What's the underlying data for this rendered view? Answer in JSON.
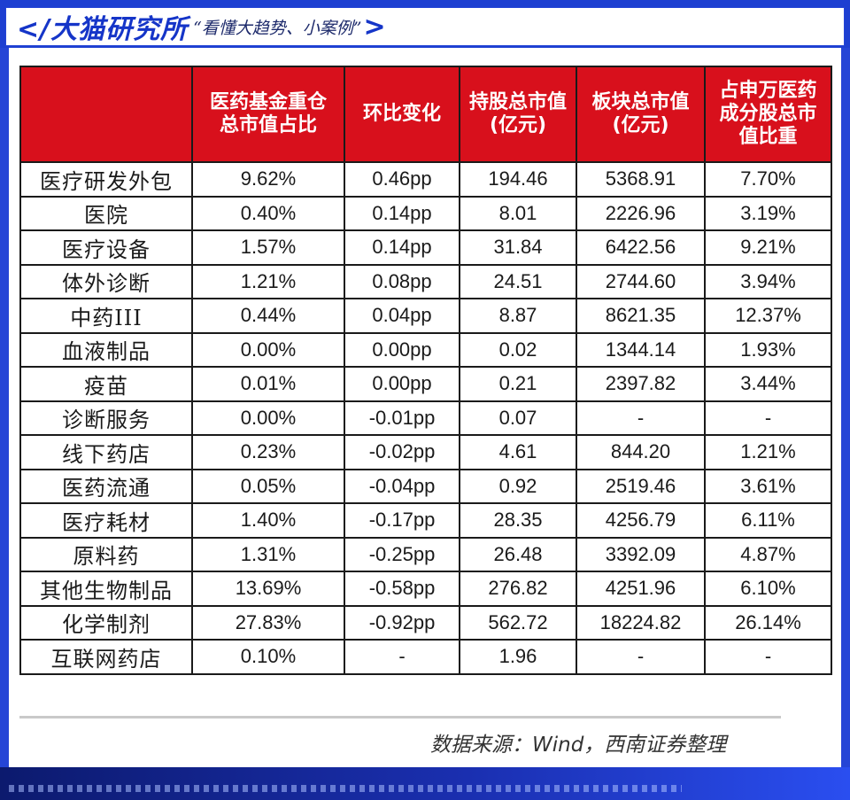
{
  "header": {
    "title": "</大猫研究所",
    "subtitle": "“看懂大趋势、小案例”",
    "close": ">"
  },
  "table": {
    "columns": [
      "",
      "医药基金重仓总市值占比",
      "环比变化",
      "持股总市值(亿元)",
      "板块总市值(亿元)",
      "占申万医药成分股总市值比重"
    ],
    "rows": [
      {
        "name": "医疗研发外包",
        "ratio": "9.62%",
        "change": "0.46pp",
        "holding": "194.46",
        "sector": "5368.91",
        "weight": "7.70%"
      },
      {
        "name": "医院",
        "ratio": "0.40%",
        "change": "0.14pp",
        "holding": "8.01",
        "sector": "2226.96",
        "weight": "3.19%"
      },
      {
        "name": "医疗设备",
        "ratio": "1.57%",
        "change": "0.14pp",
        "holding": "31.84",
        "sector": "6422.56",
        "weight": "9.21%"
      },
      {
        "name": "体外诊断",
        "ratio": "1.21%",
        "change": "0.08pp",
        "holding": "24.51",
        "sector": "2744.60",
        "weight": "3.94%"
      },
      {
        "name": "中药III",
        "ratio": "0.44%",
        "change": "0.04pp",
        "holding": "8.87",
        "sector": "8621.35",
        "weight": "12.37%"
      },
      {
        "name": "血液制品",
        "ratio": "0.00%",
        "change": "0.00pp",
        "holding": "0.02",
        "sector": "1344.14",
        "weight": "1.93%"
      },
      {
        "name": "疫苗",
        "ratio": "0.01%",
        "change": "0.00pp",
        "holding": "0.21",
        "sector": "2397.82",
        "weight": "3.44%"
      },
      {
        "name": "诊断服务",
        "ratio": "0.00%",
        "change": "-0.01pp",
        "holding": "0.07",
        "sector": "-",
        "weight": "-"
      },
      {
        "name": "线下药店",
        "ratio": "0.23%",
        "change": "-0.02pp",
        "holding": "4.61",
        "sector": "844.20",
        "weight": "1.21%"
      },
      {
        "name": "医药流通",
        "ratio": "0.05%",
        "change": "-0.04pp",
        "holding": "0.92",
        "sector": "2519.46",
        "weight": "3.61%"
      },
      {
        "name": "医疗耗材",
        "ratio": "1.40%",
        "change": "-0.17pp",
        "holding": "28.35",
        "sector": "4256.79",
        "weight": "6.11%"
      },
      {
        "name": "原料药",
        "ratio": "1.31%",
        "change": "-0.25pp",
        "holding": "26.48",
        "sector": "3392.09",
        "weight": "4.87%"
      },
      {
        "name": "其他生物制品",
        "ratio": "13.69%",
        "change": "-0.58pp",
        "holding": "276.82",
        "sector": "4251.96",
        "weight": "6.10%"
      },
      {
        "name": "化学制剂",
        "ratio": "27.83%",
        "change": "-0.92pp",
        "holding": "562.72",
        "sector": "18224.82",
        "weight": "26.14%"
      },
      {
        "name": "互联网药店",
        "ratio": "0.10%",
        "change": "-",
        "holding": "1.96",
        "sector": "-",
        "weight": "-"
      }
    ]
  },
  "source": "数据来源：Wind，西南证券整理",
  "colors": {
    "header_red": "#d8101c",
    "frame_blue": "#1d3fd1"
  }
}
